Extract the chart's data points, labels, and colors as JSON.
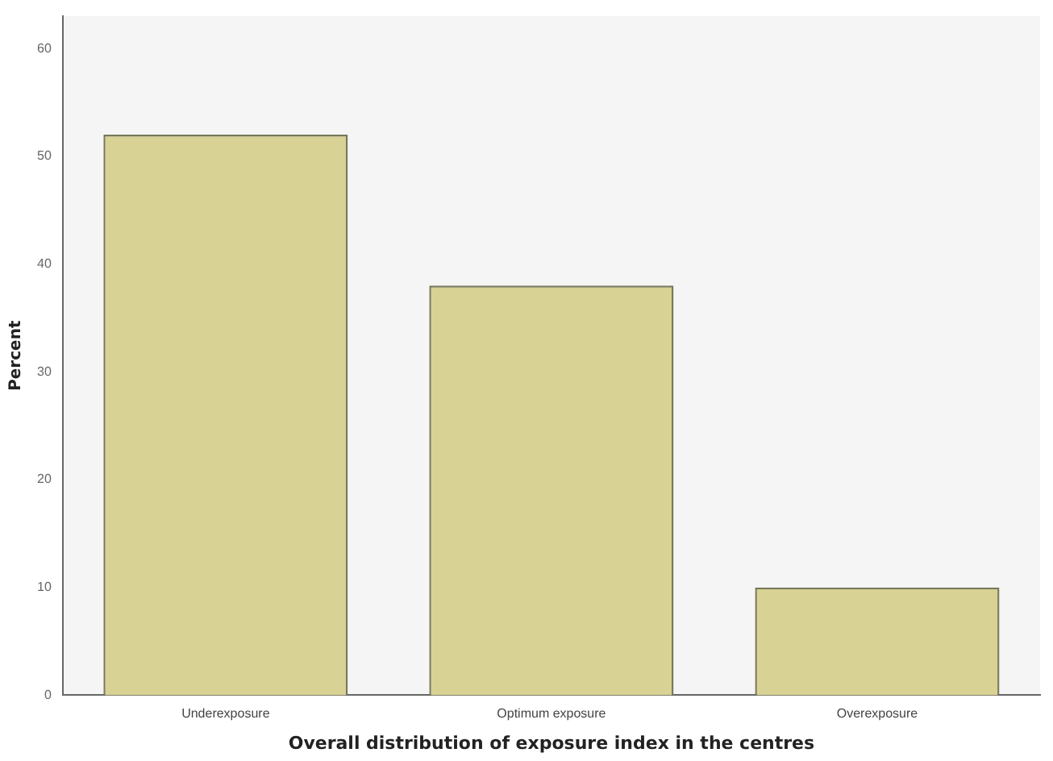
{
  "chart_data": {
    "type": "bar",
    "xlabel": "Overall distribution of exposure index in the centres",
    "ylabel": "Percent",
    "categories": [
      "Underexposure",
      "Optimum exposure",
      "Overexposure"
    ],
    "values": [
      52,
      38,
      10
    ],
    "color": "#d8d294",
    "ylim": [
      0,
      63
    ],
    "yticks": [
      0,
      10,
      20,
      30,
      40,
      50,
      60
    ],
    "grid": false,
    "legend": false
  }
}
